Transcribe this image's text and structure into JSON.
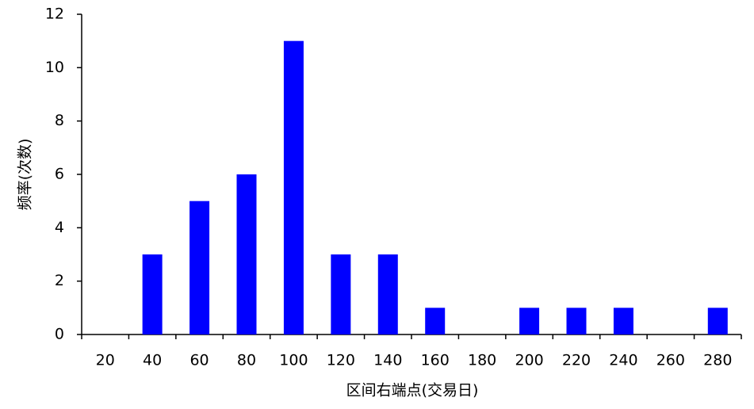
{
  "chart_data": {
    "type": "bar",
    "x_label": "区间右端点(交易日)",
    "y_label": "频率(次数)",
    "categories": [
      "20",
      "40",
      "60",
      "80",
      "100",
      "120",
      "140",
      "160",
      "180",
      "200",
      "220",
      "240",
      "260",
      "280"
    ],
    "values": [
      0,
      3,
      5,
      6,
      11,
      3,
      3,
      1,
      0,
      1,
      1,
      1,
      0,
      1
    ],
    "color": "#0000ff",
    "ylim": [
      0,
      12
    ],
    "yticks": [
      0,
      2,
      4,
      6,
      8,
      10,
      12
    ],
    "grid": false
  }
}
